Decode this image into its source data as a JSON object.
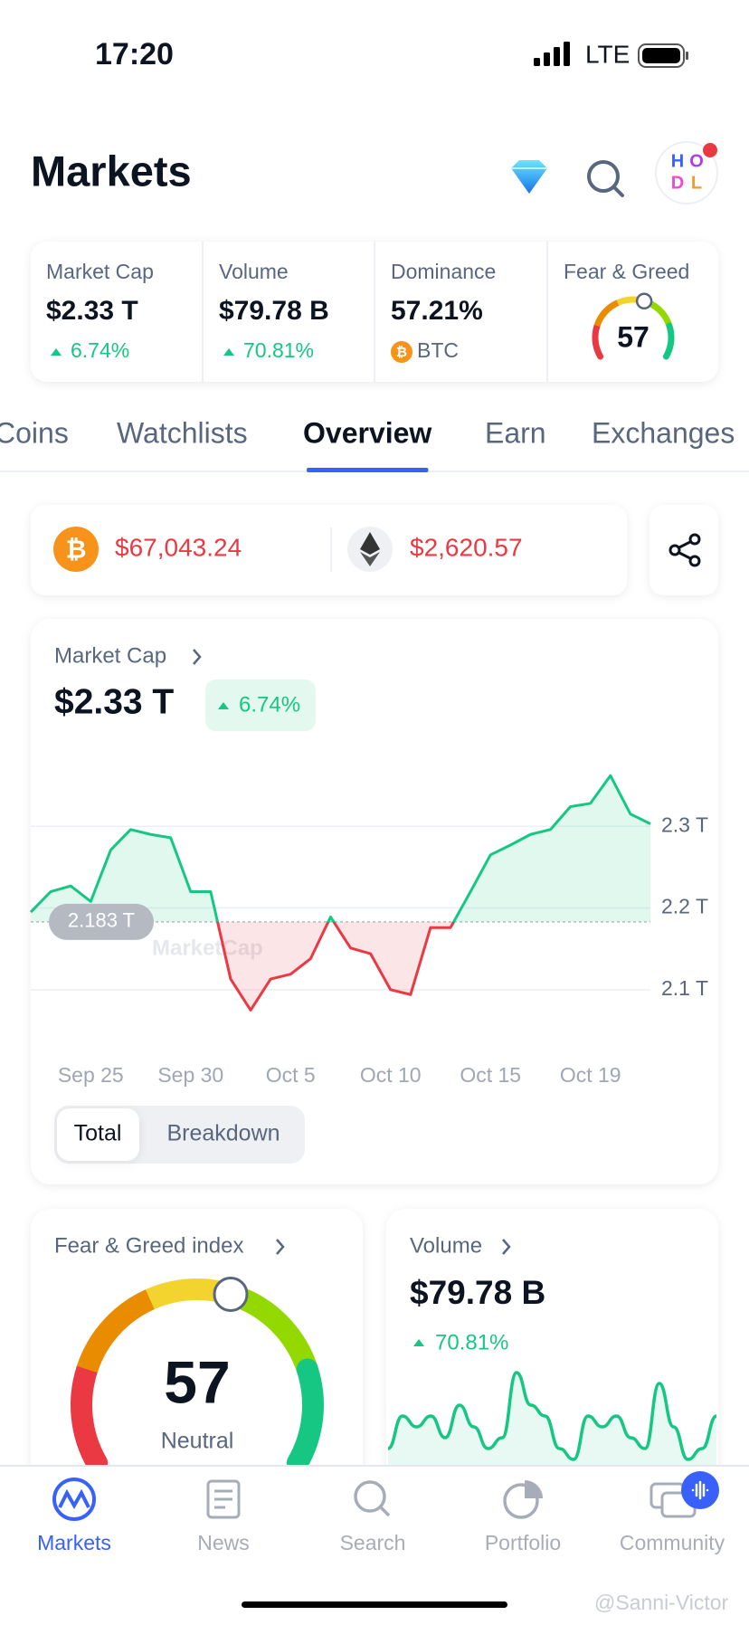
{
  "status_bar": {
    "time": "17:20",
    "network": "LTE"
  },
  "header": {
    "title": "Markets",
    "avatar": [
      "H",
      "O",
      "D",
      "L"
    ]
  },
  "stats": [
    {
      "label": "Market Cap",
      "value": "$2.33 T",
      "change": "6.74%"
    },
    {
      "label": "Volume",
      "value": "$79.78 B",
      "change": "70.81%"
    },
    {
      "label": "Dominance",
      "value": "57.21%",
      "sub": "BTC"
    },
    {
      "label": "Fear & Greed",
      "value": 57,
      "lim": [
        0,
        100
      ]
    }
  ],
  "tabs": {
    "items": [
      "Coins",
      "Watchlists",
      "Overview",
      "Earn",
      "Exchanges"
    ],
    "active": 2
  },
  "prices": [
    "$67,043.24",
    "$2,620.57"
  ],
  "market_cap_card": {
    "title": "Market Cap",
    "value": "$2.33 T",
    "change": "6.74%",
    "chart": {
      "type": "line",
      "watermark": "MarketCap",
      "categories": [
        null,
        null,
        null,
        "Sep 25",
        null,
        null,
        null,
        null,
        "Sep 30",
        null,
        null,
        null,
        null,
        "Oct 5",
        null,
        null,
        null,
        null,
        "Oct 10",
        null,
        null,
        null,
        null,
        "Oct 15",
        null,
        null,
        null,
        null,
        "Oct 19",
        null,
        null,
        null
      ],
      "values": [
        2.195,
        2.22,
        2.227,
        2.208,
        2.271,
        2.296,
        2.29,
        2.286,
        2.22,
        2.22,
        2.113,
        2.075,
        2.113,
        2.119,
        2.138,
        2.189,
        2.151,
        2.144,
        2.1,
        2.094,
        2.176,
        2.176,
        2.22,
        2.265,
        2.277,
        2.29,
        2.296,
        2.324,
        2.328,
        2.362,
        2.315,
        2.303
      ],
      "baseline": {
        "value": 2.183,
        "label": "2.183 T"
      },
      "ylim": [
        2.05,
        2.37
      ],
      "yticks": [
        {
          "value": 2.1,
          "label": "2.1 T"
        },
        {
          "value": 2.2,
          "label": "2.2 T"
        },
        {
          "value": 2.3,
          "label": "2.3 T"
        }
      ],
      "up_color": "#16c784",
      "down_color": "#ea3943"
    },
    "toggle": [
      "Total",
      "Breakdown"
    ]
  },
  "fear_greed_card": {
    "title": "Fear & Greed index",
    "value": 57,
    "label": "Neutral",
    "lim": [
      0,
      100
    ]
  },
  "volume_card": {
    "title": "Volume",
    "value": "$79.78 B",
    "change": "70.81%",
    "chart": {
      "type": "area",
      "values": [
        2,
        5,
        4,
        5,
        3,
        6,
        4,
        2,
        3,
        9,
        6,
        5,
        2,
        1,
        5,
        4,
        5,
        3,
        2,
        8,
        4,
        1,
        2,
        5
      ],
      "ylim": [
        0,
        10
      ],
      "color": "#16c784"
    }
  },
  "nav": [
    "Markets",
    "News",
    "Search",
    "Portfolio",
    "Community"
  ],
  "watermark": "@Sanni-Victor"
}
